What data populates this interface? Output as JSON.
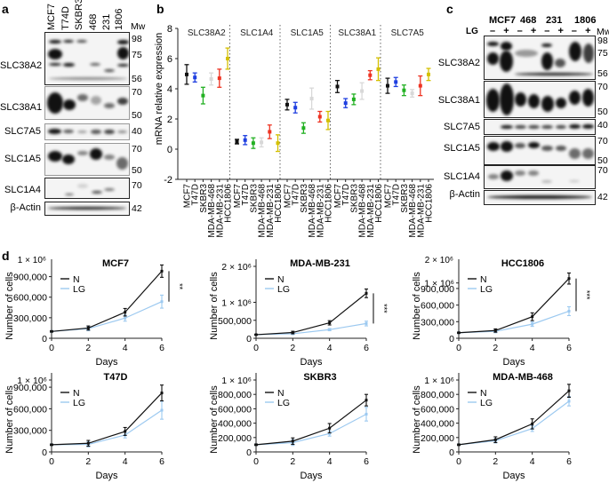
{
  "panels": {
    "a": {
      "letter": "a",
      "lanes": [
        "MCF7",
        "T74D",
        "SKBR3",
        "468",
        "231",
        "1806"
      ],
      "mw_header": "Mw",
      "blots": [
        {
          "label": "SLC38A2",
          "mw": [
            "98",
            "75",
            "56"
          ]
        },
        {
          "label": "SLC38A1",
          "mw": [
            "70",
            "50"
          ]
        },
        {
          "label": "SLC7A5",
          "mw": [
            "40"
          ]
        },
        {
          "label": "SLC1A5",
          "mw": [
            "70",
            "50"
          ]
        },
        {
          "label": "SLC1A4",
          "mw": [
            "70"
          ]
        },
        {
          "label": "β-Actin",
          "mw": [
            "42"
          ]
        }
      ]
    },
    "b": {
      "letter": "b"
    },
    "c": {
      "letter": "c",
      "groups": [
        "MCF7",
        "468",
        "231",
        "1806"
      ],
      "treatment_label": "LG",
      "treatment_signs": [
        "–",
        "+",
        "–",
        "+",
        "–",
        "+",
        "–",
        "+"
      ],
      "mw_header": "Mw",
      "blots": [
        {
          "label": "SLC38A2",
          "mw": [
            "98",
            "75",
            "56"
          ]
        },
        {
          "label": "SLC38A1",
          "mw": [
            "70",
            "50"
          ]
        },
        {
          "label": "SLC7A5",
          "mw": [
            "40"
          ]
        },
        {
          "label": "SLC1A5",
          "mw": [
            "70",
            "50"
          ]
        },
        {
          "label": "SLC1A4",
          "mw": [
            "70"
          ]
        },
        {
          "label": "β-Actin",
          "mw": [
            "42"
          ]
        }
      ]
    },
    "d": {
      "letter": "d"
    }
  },
  "chart_data": [
    {
      "id": "b",
      "type": "scatter",
      "title": "",
      "ylabel": "mRNA relative expression",
      "xlabel": "",
      "ylim": [
        -2,
        8
      ],
      "yticks": [
        -2,
        0,
        2,
        4,
        6,
        8
      ],
      "grid": false,
      "cell_lines": [
        "MCF7",
        "T47D",
        "SKBR3",
        "MDA-MB-468",
        "MDA-MB-231",
        "HCC1806"
      ],
      "colors": [
        "#111111",
        "#1f3fe0",
        "#22b022",
        "#d8d8d8",
        "#ee3322",
        "#d4c000"
      ],
      "groups": [
        {
          "name": "SLC38A2",
          "mean": [
            4.95,
            4.75,
            3.55,
            4.65,
            4.7,
            6.0
          ],
          "err": [
            0.65,
            0.3,
            0.55,
            0.4,
            0.6,
            0.7
          ]
        },
        {
          "name": "SLC1A4",
          "mean": [
            0.5,
            0.6,
            0.4,
            0.45,
            1.15,
            0.4
          ],
          "err": [
            0.15,
            0.3,
            0.35,
            0.3,
            0.45,
            0.55
          ]
        },
        {
          "name": "SLC1A5",
          "mean": [
            2.95,
            2.75,
            1.4,
            3.35,
            2.15,
            1.9
          ],
          "err": [
            0.35,
            0.35,
            0.35,
            0.7,
            0.35,
            0.6
          ]
        },
        {
          "name": "SLC38A1",
          "mean": [
            4.15,
            3.05,
            3.3,
            3.85,
            4.9,
            5.3
          ],
          "err": [
            0.4,
            0.3,
            0.35,
            0.55,
            0.3,
            0.75
          ]
        },
        {
          "name": "SLC7A5",
          "mean": [
            4.2,
            4.45,
            3.9,
            3.7,
            4.2,
            4.95
          ],
          "err": [
            0.5,
            0.3,
            0.35,
            0.25,
            0.65,
            0.4
          ]
        }
      ]
    },
    {
      "id": "d-mcf7",
      "type": "line",
      "title": "MCF7",
      "xlabel": "Days",
      "ylabel": "Number of cells",
      "x": [
        0,
        2,
        4,
        6
      ],
      "xlim": [
        0,
        6
      ],
      "ylim": [
        0,
        1050000
      ],
      "yticks": [
        0,
        300000,
        600000,
        900000
      ],
      "ytick_labels": [
        "0",
        "300,000",
        "600,000",
        "900,000"
      ],
      "ytop_label": "1 × 10⁶",
      "significance": "**",
      "legend": "top-left",
      "series": [
        {
          "name": "N",
          "color": "#111111",
          "values": [
            100000,
            150000,
            380000,
            980000
          ],
          "err": [
            8000,
            30000,
            55000,
            90000
          ]
        },
        {
          "name": "LG",
          "color": "#9cc9f0",
          "values": [
            100000,
            140000,
            295000,
            535000
          ],
          "err": [
            8000,
            30000,
            45000,
            95000
          ]
        }
      ]
    },
    {
      "id": "d-mda-mb-231",
      "type": "line",
      "title": "MDA-MB-231",
      "xlabel": "Days",
      "ylabel": "Number of cells",
      "x": [
        0,
        2,
        4,
        6
      ],
      "xlim": [
        0,
        6
      ],
      "ylim": [
        0,
        2000000
      ],
      "yticks": [
        0,
        500000,
        1000000,
        2000000
      ],
      "ytick_labels": [
        "0",
        "500,000",
        "1 × 10⁶",
        "2 × 10⁶"
      ],
      "ytop_label": "",
      "significance": "***",
      "legend": "top-left",
      "series": [
        {
          "name": "N",
          "color": "#111111",
          "values": [
            100000,
            160000,
            430000,
            1250000
          ],
          "err": [
            8000,
            35000,
            60000,
            120000
          ]
        },
        {
          "name": "LG",
          "color": "#9cc9f0",
          "values": [
            100000,
            125000,
            240000,
            410000
          ],
          "err": [
            8000,
            20000,
            30000,
            65000
          ]
        }
      ]
    },
    {
      "id": "d-hcc1806",
      "type": "line",
      "title": "HCC1806",
      "xlabel": "Days",
      "ylabel": "Number of cells",
      "x": [
        0,
        2,
        4,
        6
      ],
      "xlim": [
        0,
        6
      ],
      "ylim": [
        0,
        1300000
      ],
      "yticks": [
        0,
        300000,
        600000,
        900000,
        1000000
      ],
      "ytick_labels": [
        "0",
        "300,000",
        "600,000",
        "900,000",
        "1 × 10⁶"
      ],
      "ytop_label": "2 × 10⁶",
      "significance": "***",
      "legend": "top-left",
      "series": [
        {
          "name": "N",
          "color": "#111111",
          "values": [
            100000,
            140000,
            390000,
            1080000
          ],
          "err": [
            8000,
            30000,
            70000,
            100000
          ]
        },
        {
          "name": "LG",
          "color": "#9cc9f0",
          "values": [
            100000,
            125000,
            255000,
            490000
          ],
          "err": [
            8000,
            25000,
            40000,
            80000
          ]
        }
      ]
    },
    {
      "id": "d-t47d",
      "type": "line",
      "title": "T47D",
      "xlabel": "Days",
      "ylabel": "Number of cells",
      "x": [
        0,
        2,
        4,
        6
      ],
      "xlim": [
        0,
        6
      ],
      "ylim": [
        0,
        1000000
      ],
      "yticks": [
        0,
        300000,
        600000,
        900000,
        1000000
      ],
      "ytick_labels": [
        "0",
        "300,000",
        "600,000",
        "900,000",
        "1 × 10⁶"
      ],
      "ytop_label": "",
      "significance": "",
      "legend": "top-left",
      "series": [
        {
          "name": "N",
          "color": "#111111",
          "values": [
            100000,
            120000,
            285000,
            820000
          ],
          "err": [
            8000,
            40000,
            55000,
            110000
          ]
        },
        {
          "name": "LG",
          "color": "#9cc9f0",
          "values": [
            100000,
            105000,
            235000,
            580000
          ],
          "err": [
            8000,
            35000,
            40000,
            125000
          ]
        }
      ]
    },
    {
      "id": "d-skbr3",
      "type": "line",
      "title": "SKBR3",
      "xlabel": "Days",
      "ylabel": "Number of cells",
      "x": [
        0,
        2,
        4,
        6
      ],
      "xlim": [
        0,
        6
      ],
      "ylim": [
        0,
        1000000
      ],
      "yticks": [
        0,
        200000,
        400000,
        600000,
        800000,
        1000000
      ],
      "ytick_labels": [
        "0",
        "200,000",
        "400,000",
        "600,000",
        "800,000",
        "1 × 10⁶"
      ],
      "ytop_label": "",
      "significance": "",
      "legend": "top-left",
      "series": [
        {
          "name": "N",
          "color": "#111111",
          "values": [
            100000,
            150000,
            330000,
            720000
          ],
          "err": [
            8000,
            45000,
            65000,
            80000
          ]
        },
        {
          "name": "LG",
          "color": "#9cc9f0",
          "values": [
            100000,
            130000,
            255000,
            525000
          ],
          "err": [
            8000,
            40000,
            35000,
            95000
          ]
        }
      ]
    },
    {
      "id": "d-mda-mb-468",
      "type": "line",
      "title": "MDA-MB-468",
      "xlabel": "Days",
      "ylabel": "Number of cells",
      "x": [
        0,
        2,
        4,
        6
      ],
      "xlim": [
        0,
        6
      ],
      "ylim": [
        0,
        1000000
      ],
      "yticks": [
        0,
        200000,
        400000,
        600000,
        800000,
        1000000
      ],
      "ytick_labels": [
        "0",
        "200,000",
        "400,000",
        "600,000",
        "800,000",
        "1 × 10⁶"
      ],
      "ytop_label": "",
      "significance": "",
      "legend": "top-left",
      "series": [
        {
          "name": "N",
          "color": "#111111",
          "values": [
            100000,
            170000,
            390000,
            850000
          ],
          "err": [
            8000,
            40000,
            70000,
            90000
          ]
        },
        {
          "name": "LG",
          "color": "#9cc9f0",
          "values": [
            100000,
            155000,
            325000,
            705000
          ],
          "err": [
            8000,
            30000,
            40000,
            65000
          ]
        }
      ]
    }
  ]
}
